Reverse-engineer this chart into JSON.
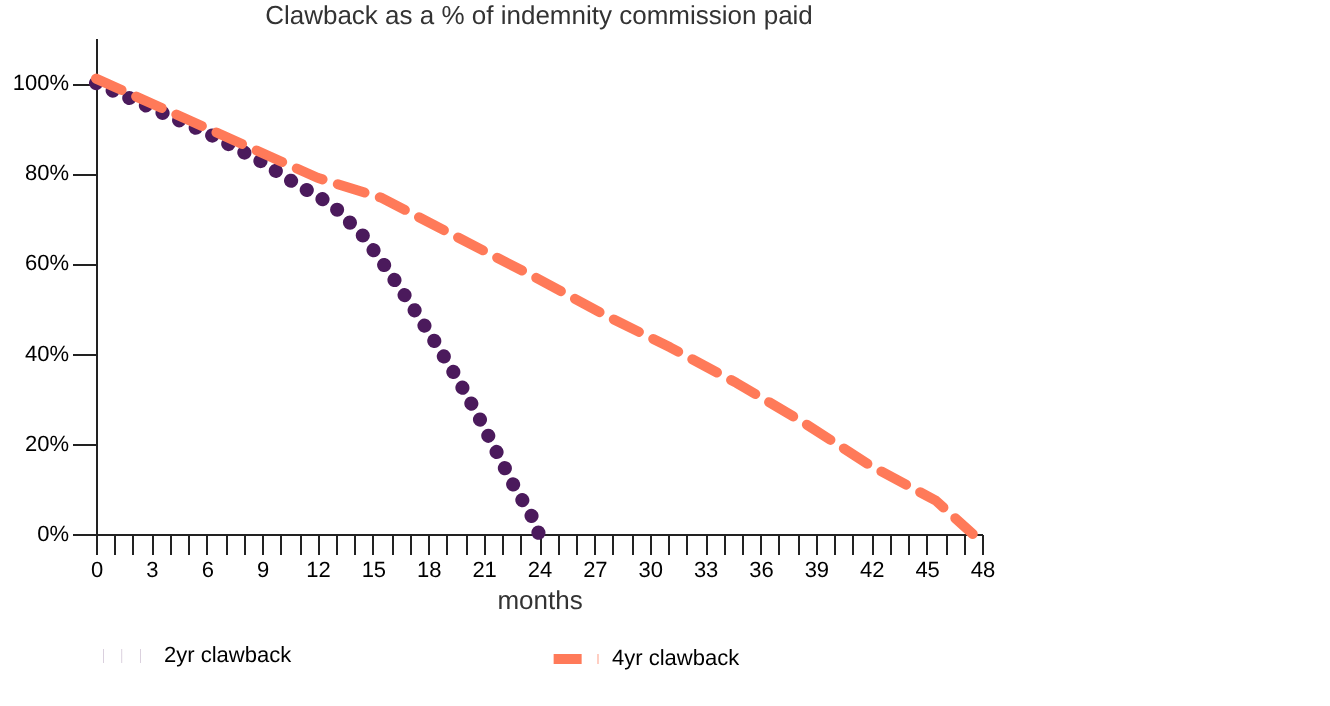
{
  "chart_data": {
    "type": "line",
    "title": "Clawback as a % of indemnity commission paid",
    "xlabel": "months",
    "xlim": [
      0,
      48
    ],
    "ylim": [
      0,
      110
    ],
    "xticks": [
      0,
      {
        "value": 1,
        "label": null
      },
      {
        "value": 2,
        "label": null
      },
      3,
      {
        "value": 4,
        "label": null
      },
      {
        "value": 5,
        "label": null
      },
      6,
      {
        "value": 7,
        "label": null
      },
      {
        "value": 8,
        "label": null
      },
      9,
      {
        "value": 10,
        "label": null
      },
      {
        "value": 11,
        "label": null
      },
      12,
      {
        "value": 13,
        "label": null
      },
      {
        "value": 14,
        "label": null
      },
      15,
      {
        "value": 16,
        "label": null
      },
      {
        "value": 17,
        "label": null
      },
      18,
      {
        "value": 19,
        "label": null
      },
      {
        "value": 20,
        "label": null
      },
      21,
      {
        "value": 22,
        "label": null
      },
      {
        "value": 23,
        "label": null
      },
      24,
      {
        "value": 25,
        "label": null
      },
      {
        "value": 26,
        "label": null
      },
      27,
      {
        "value": 28,
        "label": null
      },
      {
        "value": 29,
        "label": null
      },
      30,
      {
        "value": 31,
        "label": null
      },
      {
        "value": 32,
        "label": null
      },
      33,
      {
        "value": 34,
        "label": null
      },
      {
        "value": 35,
        "label": null
      },
      36,
      {
        "value": 37,
        "label": null
      },
      {
        "value": 38,
        "label": null
      },
      39,
      {
        "value": 40,
        "label": null
      },
      {
        "value": 41,
        "label": null
      },
      42,
      {
        "value": 43,
        "label": null
      },
      {
        "value": 44,
        "label": null
      },
      45,
      {
        "value": 46,
        "label": null
      },
      {
        "value": 47,
        "label": null
      },
      48
    ],
    "yticks": [
      {
        "value": 0,
        "label": "0%"
      },
      {
        "value": 20,
        "label": "20%"
      },
      {
        "value": 40,
        "label": "40%"
      },
      {
        "value": 60,
        "label": "60%"
      },
      {
        "value": 80,
        "label": "80%"
      },
      {
        "value": 100,
        "label": "100%"
      }
    ],
    "grid": false,
    "legend": "bottom",
    "series": [
      {
        "name": "2yr clawback",
        "color": "#4b1a5c",
        "line_style": "dotted",
        "x": [
          0,
          3,
          6,
          9,
          10.7,
          12.8,
          14.5,
          15.9,
          17.2,
          18.3,
          19.5,
          20.6,
          21.6,
          22.6,
          23.6,
          24
        ],
        "values": [
          100,
          94.5,
          89,
          82.5,
          78,
          73,
          66,
          58,
          50,
          43,
          35,
          27,
          19,
          11,
          4,
          0
        ]
      },
      {
        "name": "4yr clawback",
        "color": "#ff7a59",
        "line_style": "dashed",
        "x": [
          0,
          6,
          12,
          15.5,
          19.5,
          23.9,
          27.5,
          31.1,
          34.7,
          38.3,
          41.9,
          45.5,
          47.5
        ],
        "values": [
          101,
          90,
          79,
          74.5,
          66,
          56.7,
          48.7,
          41.4,
          33.5,
          24.8,
          15.3,
          7.4,
          0
        ]
      }
    ]
  }
}
